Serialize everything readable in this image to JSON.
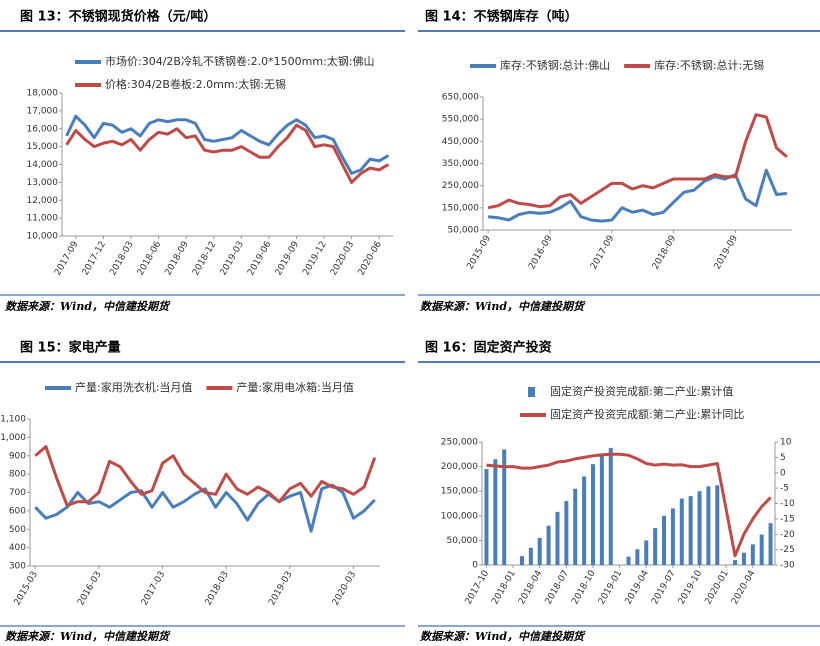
{
  "chart_data": [
    {
      "type": "line",
      "title": "图 13：不锈钢现货价格（元/吨）",
      "source": "数据来源：Wind，中信建投期货",
      "legend": "top-left",
      "x": [
        "2017-08",
        "2017-09",
        "2017-10",
        "2017-11",
        "2017-12",
        "2018-01",
        "2018-02",
        "2018-03",
        "2018-04",
        "2018-05",
        "2018-06",
        "2018-07",
        "2018-08",
        "2018-09",
        "2018-10",
        "2018-11",
        "2018-12",
        "2019-01",
        "2019-02",
        "2019-03",
        "2019-04",
        "2019-05",
        "2019-06",
        "2019-07",
        "2019-08",
        "2019-09",
        "2019-10",
        "2019-11",
        "2019-12",
        "2020-01",
        "2020-02",
        "2020-03",
        "2020-04",
        "2020-05",
        "2020-06",
        "2020-07"
      ],
      "xticks": [
        "2017-09",
        "2017-12",
        "2018-03",
        "2018-06",
        "2018-09",
        "2018-12",
        "2019-03",
        "2019-06",
        "2019-09",
        "2019-12",
        "2020-03",
        "2020-06"
      ],
      "ylim": [
        10000,
        18000
      ],
      "yticks": [
        {
          "value": 10000,
          "label": "10,000"
        },
        {
          "value": 11000,
          "label": "11,000"
        },
        {
          "value": 12000,
          "label": "12,000"
        },
        {
          "value": 13000,
          "label": "13,000"
        },
        {
          "value": 14000,
          "label": "14,000"
        },
        {
          "value": 15000,
          "label": "15,000"
        },
        {
          "value": 16000,
          "label": "16,000"
        },
        {
          "value": 17000,
          "label": "17,000"
        },
        {
          "value": 18000,
          "label": "18,000"
        }
      ],
      "series": [
        {
          "name": "市场价:304/2B冷轧不锈钢卷:2.0*1500mm:太钢:佛山",
          "color": "#4a7ebb",
          "values": [
            15600,
            16700,
            16200,
            15500,
            16300,
            16200,
            15800,
            16000,
            15600,
            16300,
            16500,
            16400,
            16500,
            16500,
            16300,
            15400,
            15300,
            15400,
            15500,
            15900,
            15600,
            15300,
            15100,
            15700,
            16200,
            16500,
            16200,
            15500,
            15600,
            15400,
            14400,
            13500,
            13700,
            14300,
            14200,
            14500
          ]
        },
        {
          "name": "价格:304/2B卷板:2.0mm:太钢:无锡",
          "color": "#be4b48",
          "values": [
            15100,
            15900,
            15400,
            15000,
            15200,
            15300,
            15100,
            15400,
            14800,
            15400,
            15800,
            15700,
            16000,
            15500,
            15600,
            14800,
            14700,
            14800,
            14800,
            15000,
            14700,
            14400,
            14400,
            15000,
            15500,
            16200,
            15900,
            15000,
            15100,
            15000,
            14000,
            13000,
            13500,
            13800,
            13700,
            14000
          ]
        }
      ]
    },
    {
      "type": "line",
      "title": "图 14：不锈钢库存（吨）",
      "source": "数据来源：Wind，中信建投期货",
      "legend": "top",
      "x": [
        "2015-09",
        "2015-11",
        "2016-01",
        "2016-03",
        "2016-05",
        "2016-07",
        "2016-09",
        "2016-11",
        "2017-01",
        "2017-03",
        "2017-05",
        "2017-07",
        "2017-09",
        "2017-11",
        "2018-01",
        "2018-03",
        "2018-05",
        "2018-07",
        "2018-09",
        "2018-11",
        "2019-01",
        "2019-03",
        "2019-05",
        "2019-07",
        "2019-09",
        "2019-11",
        "2020-01",
        "2020-03",
        "2020-05",
        "2020-07"
      ],
      "xticks": [
        "2015-09",
        "2016-09",
        "2017-09",
        "2018-09",
        "2019-09"
      ],
      "ylim": [
        50000,
        650000
      ],
      "yticks": [
        {
          "value": 50000,
          "label": "50,000"
        },
        {
          "value": 150000,
          "label": "150,000"
        },
        {
          "value": 250000,
          "label": "250,000"
        },
        {
          "value": 350000,
          "label": "350,000"
        },
        {
          "value": 450000,
          "label": "450,000"
        },
        {
          "value": 550000,
          "label": "550,000"
        },
        {
          "value": 650000,
          "label": "650,000"
        }
      ],
      "series": [
        {
          "name": "库存:不锈钢:总计:佛山",
          "color": "#4a7ebb",
          "values": [
            110000,
            105000,
            95000,
            120000,
            130000,
            125000,
            130000,
            150000,
            180000,
            110000,
            95000,
            90000,
            95000,
            150000,
            130000,
            140000,
            120000,
            130000,
            175000,
            220000,
            230000,
            270000,
            290000,
            280000,
            300000,
            190000,
            160000,
            320000,
            210000,
            215000
          ]
        },
        {
          "name": "库存:不锈钢:总计:无锡",
          "color": "#be4b48",
          "values": [
            150000,
            160000,
            185000,
            170000,
            165000,
            155000,
            160000,
            200000,
            210000,
            170000,
            200000,
            230000,
            260000,
            260000,
            235000,
            250000,
            240000,
            260000,
            280000,
            280000,
            280000,
            280000,
            300000,
            290000,
            290000,
            450000,
            570000,
            560000,
            420000,
            380000
          ]
        }
      ]
    },
    {
      "type": "line",
      "title": "图 15：家电产量",
      "source": "数据来源：Wind，中信建投期货",
      "legend": "top",
      "x": [
        "2015-03",
        "2015-05",
        "2015-07",
        "2015-09",
        "2015-11",
        "2016-01",
        "2016-03",
        "2016-05",
        "2016-07",
        "2016-09",
        "2016-11",
        "2017-01",
        "2017-03",
        "2017-05",
        "2017-07",
        "2017-09",
        "2017-11",
        "2018-01",
        "2018-03",
        "2018-05",
        "2018-07",
        "2018-09",
        "2018-11",
        "2019-01",
        "2019-03",
        "2019-05",
        "2019-07",
        "2019-09",
        "2019-11",
        "2020-01",
        "2020-03",
        "2020-05",
        "2020-07"
      ],
      "xticks": [
        "2015-03",
        "2016-03",
        "2017-03",
        "2018-03",
        "2019-03",
        "2020-03"
      ],
      "ylim": [
        300,
        1100
      ],
      "yticks": [
        300,
        400,
        500,
        600,
        700,
        800,
        900,
        {
          "value": 1000,
          "label": "1,000"
        },
        {
          "value": 1100,
          "label": "1,100"
        }
      ],
      "series": [
        {
          "name": "产量:家用洗衣机:当月值",
          "color": "#4a7ebb",
          "values": [
            620,
            560,
            580,
            620,
            700,
            640,
            650,
            620,
            660,
            700,
            710,
            620,
            700,
            620,
            650,
            690,
            720,
            620,
            700,
            640,
            550,
            640,
            690,
            650,
            680,
            700,
            490,
            720,
            740,
            700,
            560,
            600,
            660
          ]
        },
        {
          "name": "产量:家用电冰箱:当月值",
          "color": "#be4b48",
          "values": [
            900,
            950,
            780,
            630,
            650,
            650,
            700,
            870,
            840,
            760,
            690,
            710,
            860,
            900,
            800,
            750,
            700,
            690,
            800,
            720,
            690,
            730,
            700,
            650,
            720,
            750,
            680,
            760,
            730,
            720,
            690,
            730,
            890
          ]
        }
      ]
    },
    {
      "type": "combo",
      "title": "图 16：固定资产投资",
      "source": "数据来源：Wind，中信建投期货",
      "legend": "top",
      "x": [
        "2017-10",
        "2017-11",
        "2017-12",
        "2018-01",
        "2018-02",
        "2018-03",
        "2018-04",
        "2018-05",
        "2018-06",
        "2018-07",
        "2018-08",
        "2018-09",
        "2018-10",
        "2018-11",
        "2018-12",
        "2019-01",
        "2019-02",
        "2019-03",
        "2019-04",
        "2019-05",
        "2019-06",
        "2019-07",
        "2019-08",
        "2019-09",
        "2019-10",
        "2019-11",
        "2019-12",
        "2020-01",
        "2020-02",
        "2020-03",
        "2020-04",
        "2020-05",
        "2020-06"
      ],
      "xticks": [
        "2017-10",
        "2018-01",
        "2018-04",
        "2018-07",
        "2018-10",
        "2019-01",
        "2019-04",
        "2019-07",
        "2019-10",
        "2020-01",
        "2020-04"
      ],
      "ylim": [
        0,
        250000
      ],
      "yticks": [
        0,
        {
          "value": 50000,
          "label": "50,000"
        },
        {
          "value": 100000,
          "label": "100,000"
        },
        {
          "value": 150000,
          "label": "150,000"
        },
        {
          "value": 200000,
          "label": "200,000"
        },
        {
          "value": 250000,
          "label": "250,000"
        }
      ],
      "y2lim": [
        -30,
        10
      ],
      "y2ticks": [
        -30,
        -25,
        -20,
        -15,
        -10,
        -5,
        0,
        5,
        10
      ],
      "series": [
        {
          "name": "固定资产投资完成额:第二产业:累计值",
          "color": "#4a7ebb",
          "values": [
            195000,
            215000,
            235000,
            null,
            18000,
            35000,
            55000,
            80000,
            108000,
            130000,
            155000,
            180000,
            205000,
            222000,
            238000,
            null,
            17000,
            32000,
            50000,
            75000,
            100000,
            115000,
            135000,
            140000,
            150000,
            160000,
            162000,
            null,
            10000,
            25000,
            42000,
            62000,
            85000
          ]
        },
        {
          "name": "固定资产投资完成额:第二产业:累计同比",
          "color": "#be4b48",
          "axis": "y2",
          "values": [
            2.5,
            2.2,
            2.0,
            2.0,
            1.5,
            1.5,
            2.0,
            2.5,
            3.5,
            3.8,
            4.5,
            5.0,
            5.5,
            5.8,
            6.0,
            6.0,
            5.7,
            4.5,
            3.0,
            2.5,
            2.8,
            2.5,
            2.6,
            2.0,
            2.0,
            2.5,
            3.0,
            -12,
            -27,
            -20,
            -15,
            -11,
            -8
          ]
        }
      ]
    }
  ]
}
